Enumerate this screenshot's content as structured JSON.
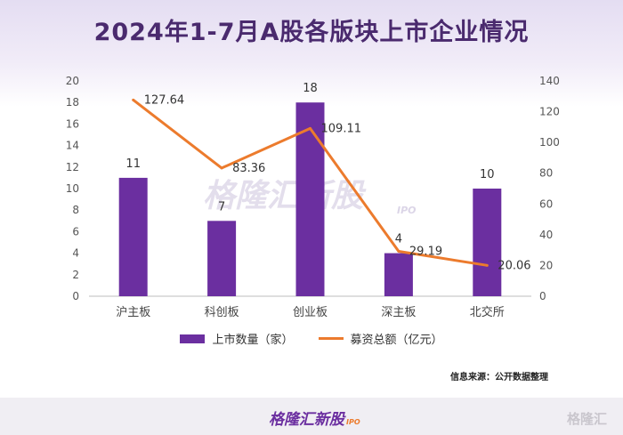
{
  "title": "2024年1-7月A股各版块上市企业情况",
  "chart_data": {
    "type": "bar+line",
    "title": "2024年1-7月A股各版块上市企业情况",
    "categories": [
      "沪主板",
      "科创板",
      "创业板",
      "深主板",
      "北交所"
    ],
    "series": [
      {
        "name": "上市数量（家）",
        "type": "bar",
        "axis": "left",
        "values": [
          11,
          7,
          18,
          4,
          10
        ],
        "color": "#6b2fa0"
      },
      {
        "name": "募资总额（亿元）",
        "type": "line",
        "axis": "right",
        "values": [
          127.64,
          83.36,
          109.11,
          29.19,
          20.06
        ],
        "color": "#ec7b2d"
      }
    ],
    "left_axis": {
      "min": 0,
      "max": 20,
      "ticks": [
        0,
        2,
        4,
        6,
        8,
        10,
        12,
        14,
        16,
        18,
        20
      ]
    },
    "right_axis": {
      "min": 0,
      "max": 140,
      "ticks": [
        0,
        20,
        40,
        60,
        80,
        100,
        120,
        140
      ]
    },
    "legend_position": "bottom"
  },
  "legend": {
    "bar_label": "上市数量（家）",
    "line_label": "募资总额（亿元）"
  },
  "source": "信息来源：公开数据整理",
  "watermark": {
    "main": "格隆汇新股",
    "sub": "IPO"
  },
  "footer": {
    "logo": "格隆汇新股",
    "logo_sub": "IPO",
    "corner": "格隆汇"
  }
}
